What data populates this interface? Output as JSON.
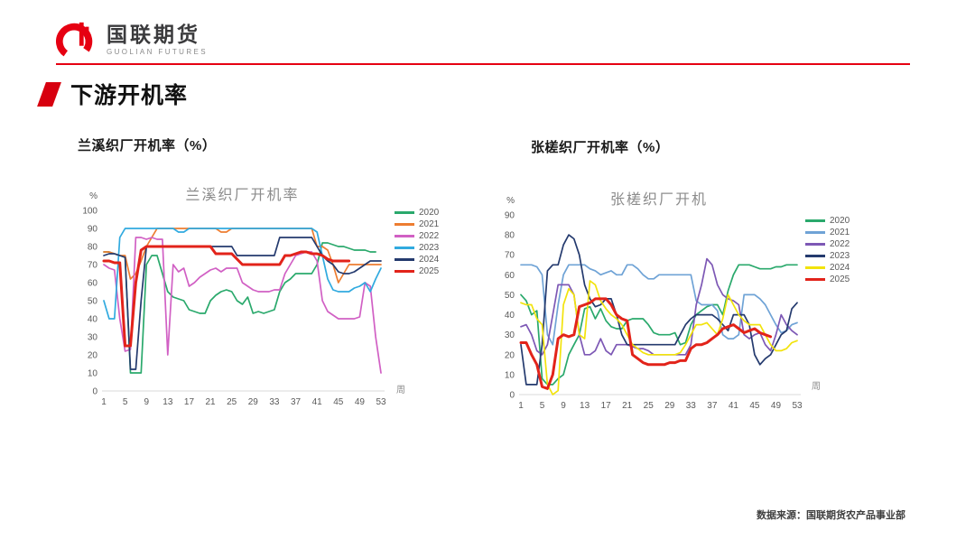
{
  "header": {
    "logo_cn": "国联期货",
    "logo_en": "GUOLIAN FUTURES",
    "brand_color": "#e60012"
  },
  "page_title": "下游开机率",
  "footer": {
    "source": "数据来源：国联期货农产品事业部"
  },
  "chart_data": [
    {
      "type": "line",
      "heading": "兰溪织厂开机率（%）",
      "title": "兰溪织厂开机率",
      "ylabel": "%",
      "xlabel": "周",
      "ylim": [
        0,
        100
      ],
      "xlim": [
        1,
        53
      ],
      "yticks": [
        100,
        90,
        80,
        70,
        60,
        50,
        40,
        30,
        20,
        10,
        0
      ],
      "xticks": [
        1,
        5,
        9,
        13,
        17,
        21,
        25,
        29,
        33,
        37,
        41,
        45,
        49,
        53
      ],
      "grid": false,
      "legend_position": "right",
      "series": [
        {
          "name": "2020",
          "color": "#2aa96c",
          "values": [
            77,
            77,
            76,
            75,
            74,
            10,
            10,
            10,
            70,
            75,
            75,
            65,
            55,
            52,
            51,
            50,
            45,
            44,
            43,
            43,
            50,
            53,
            55,
            56,
            55,
            50,
            48,
            52,
            43,
            44,
            43,
            44,
            45,
            55,
            60,
            62,
            65,
            65,
            65,
            65,
            70,
            82,
            82,
            81,
            80,
            80,
            79,
            78,
            78,
            78,
            77,
            77
          ]
        },
        {
          "name": "2021",
          "color": "#ed7d31",
          "values": [
            77,
            77,
            76,
            75,
            75,
            62,
            65,
            72,
            80,
            85,
            90,
            90,
            90,
            90,
            90,
            90,
            90,
            90,
            90,
            90,
            90,
            90,
            88,
            88,
            90,
            90,
            90,
            90,
            90,
            90,
            90,
            90,
            90,
            90,
            90,
            90,
            90,
            90,
            90,
            90,
            80,
            80,
            78,
            70,
            60,
            65,
            70,
            70,
            70,
            70,
            70,
            70,
            70
          ]
        },
        {
          "name": "2022",
          "color": "#d160c4",
          "values": [
            70,
            68,
            67,
            40,
            22,
            23,
            85,
            85,
            84,
            85,
            84,
            84,
            20,
            70,
            66,
            68,
            58,
            60,
            63,
            65,
            67,
            68,
            66,
            68,
            68,
            68,
            60,
            58,
            56,
            55,
            55,
            55,
            56,
            56,
            65,
            70,
            75,
            76,
            77,
            77,
            72,
            50,
            44,
            42,
            40,
            40,
            40,
            40,
            41,
            60,
            58,
            30,
            10
          ]
        },
        {
          "name": "2023",
          "color": "#31aadf",
          "values": [
            50,
            40,
            40,
            85,
            90,
            90,
            90,
            90,
            90,
            90,
            90,
            90,
            90,
            90,
            88,
            88,
            90,
            90,
            90,
            90,
            90,
            90,
            90,
            90,
            90,
            90,
            90,
            90,
            90,
            90,
            90,
            90,
            90,
            90,
            90,
            90,
            90,
            90,
            90,
            90,
            88,
            75,
            62,
            56,
            55,
            55,
            55,
            57,
            58,
            60,
            55,
            62,
            68
          ]
        },
        {
          "name": "2024",
          "color": "#243a6e",
          "values": [
            75,
            76,
            76,
            75,
            74,
            12,
            12,
            50,
            80,
            80,
            80,
            80,
            80,
            80,
            80,
            80,
            80,
            80,
            80,
            80,
            80,
            80,
            80,
            80,
            80,
            75,
            75,
            75,
            75,
            75,
            75,
            75,
            75,
            85,
            85,
            85,
            85,
            85,
            85,
            85,
            80,
            75,
            72,
            70,
            66,
            65,
            65,
            66,
            68,
            70,
            72,
            72,
            72
          ]
        },
        {
          "name": "2025",
          "color": "#e2231a",
          "thick": true,
          "values": [
            72,
            72,
            71,
            71,
            25,
            25,
            60,
            78,
            80,
            80,
            80,
            80,
            80,
            80,
            80,
            80,
            80,
            80,
            80,
            80,
            80,
            76,
            76,
            76,
            76,
            73,
            70,
            70,
            70,
            70,
            70,
            70,
            70,
            70,
            75,
            75,
            76,
            77,
            77,
            76,
            76,
            75,
            73,
            72,
            72,
            72,
            72
          ]
        }
      ]
    },
    {
      "type": "line",
      "heading": "张槎织厂开机率（%）",
      "title": "张槎织厂开机",
      "ylabel": "%",
      "xlabel": "周",
      "ylim": [
        0,
        90
      ],
      "xlim": [
        1,
        53
      ],
      "yticks": [
        90,
        80,
        70,
        60,
        50,
        40,
        30,
        20,
        10,
        0
      ],
      "xticks": [
        1,
        5,
        9,
        13,
        17,
        21,
        25,
        29,
        33,
        37,
        41,
        45,
        49,
        53
      ],
      "grid": false,
      "legend_position": "right",
      "series": [
        {
          "name": "2020",
          "color": "#2aa96c",
          "values": [
            50,
            47,
            40,
            42,
            8,
            5,
            5,
            8,
            10,
            20,
            25,
            30,
            43,
            44,
            38,
            43,
            37,
            34,
            33,
            33,
            37,
            38,
            38,
            38,
            35,
            31,
            30,
            30,
            30,
            31,
            25,
            26,
            35,
            40,
            42,
            44,
            45,
            45,
            40,
            52,
            60,
            65,
            65,
            65,
            64,
            63,
            63,
            63,
            64,
            64,
            65,
            65,
            65
          ]
        },
        {
          "name": "2021",
          "color": "#6fa3d6",
          "values": [
            65,
            65,
            65,
            64,
            60,
            30,
            25,
            45,
            60,
            65,
            65,
            65,
            65,
            63,
            62,
            60,
            61,
            62,
            60,
            60,
            65,
            65,
            63,
            60,
            58,
            58,
            60,
            60,
            60,
            60,
            60,
            60,
            60,
            47,
            45,
            45,
            45,
            42,
            30,
            28,
            28,
            30,
            50,
            50,
            50,
            48,
            45,
            40,
            35,
            31,
            32,
            35,
            36
          ]
        },
        {
          "name": "2022",
          "color": "#7d58b5",
          "values": [
            34,
            35,
            30,
            22,
            20,
            25,
            40,
            55,
            55,
            55,
            50,
            30,
            20,
            20,
            22,
            28,
            22,
            20,
            25,
            25,
            25,
            24,
            23,
            23,
            22,
            20,
            20,
            20,
            20,
            20,
            20,
            20,
            25,
            45,
            55,
            68,
            65,
            55,
            50,
            48,
            47,
            45,
            30,
            28,
            30,
            31,
            25,
            22,
            30,
            40,
            35,
            32,
            30
          ]
        },
        {
          "name": "2023",
          "color": "#243a6e",
          "values": [
            25,
            5,
            5,
            5,
            25,
            62,
            65,
            65,
            75,
            80,
            78,
            70,
            55,
            48,
            44,
            45,
            48,
            48,
            40,
            30,
            25,
            25,
            25,
            25,
            25,
            25,
            25,
            25,
            25,
            25,
            30,
            35,
            38,
            40,
            40,
            40,
            40,
            38,
            35,
            32,
            40,
            40,
            40,
            35,
            20,
            15,
            18,
            20,
            25,
            30,
            32,
            43,
            46
          ]
        },
        {
          "name": "2024",
          "color": "#f2e30c",
          "values": [
            46,
            45,
            45,
            38,
            35,
            5,
            0,
            2,
            45,
            53,
            50,
            30,
            28,
            57,
            55,
            47,
            43,
            40,
            38,
            35,
            30,
            25,
            23,
            21,
            20,
            20,
            20,
            20,
            20,
            20,
            21,
            25,
            30,
            35,
            35,
            36,
            33,
            30,
            38,
            50,
            45,
            40,
            37,
            35,
            35,
            35,
            30,
            25,
            22,
            22,
            23,
            26,
            27
          ]
        },
        {
          "name": "2025",
          "color": "#e2231a",
          "thick": true,
          "values": [
            26,
            26,
            20,
            15,
            4,
            3,
            10,
            28,
            30,
            29,
            30,
            44,
            45,
            46,
            48,
            48,
            48,
            45,
            40,
            38,
            37,
            20,
            18,
            16,
            15,
            15,
            15,
            15,
            16,
            16,
            17,
            17,
            23,
            25,
            25,
            26,
            28,
            30,
            33,
            34,
            35,
            33,
            31,
            32,
            33,
            31,
            30,
            29
          ]
        }
      ]
    }
  ]
}
